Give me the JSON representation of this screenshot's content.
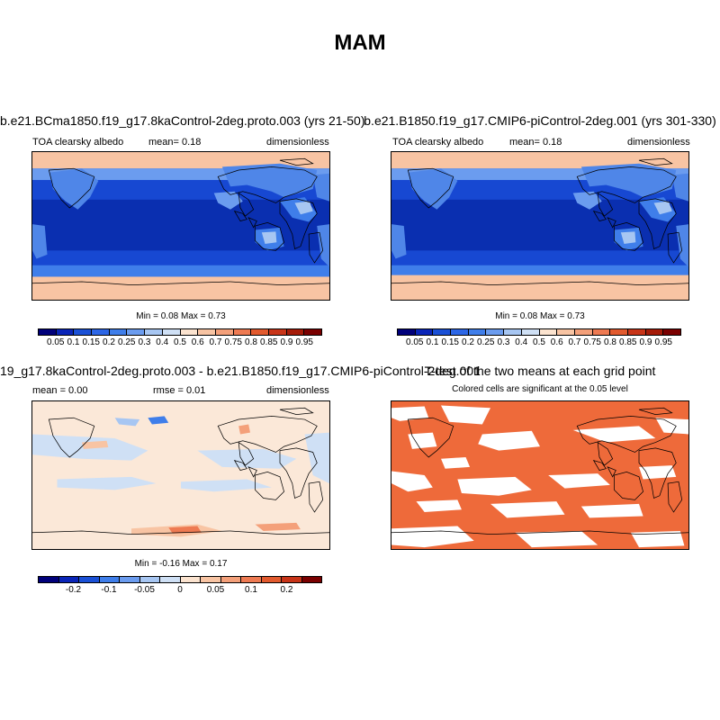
{
  "title": "MAM",
  "panels": {
    "p1": {
      "title": "b.e21.BCma1850.f19_g17.8kaControl-2deg.proto.003 (yrs 21-50)",
      "left_label": "TOA clearsky albedo",
      "center_label": "mean=  0.18",
      "right_label": "dimensionless",
      "minmax": "Min =  0.08 Max =  0.73"
    },
    "p2": {
      "title": "b.e21.B1850.f19_g17.CMIP6-piControl-2deg.001 (yrs 301-330)",
      "left_label": "TOA clearsky albedo",
      "center_label": "mean=  0.18",
      "right_label": "dimensionless",
      "minmax": "Min =  0.08 Max =  0.73"
    },
    "p3": {
      "title": "19_g17.8kaControl-2deg.proto.003 - b.e21.B1850.f19_g17.CMIP6-piControl-2deg.001",
      "left_label": "mean =  0.00",
      "center_label": "rmse =  0.01",
      "right_label": "dimensionless",
      "minmax": "Min =  -0.16 Max =  0.17"
    },
    "p4": {
      "title": "T-test of the two means at each grid point",
      "subtitle": "Colored cells are significant at the 0.05 level"
    }
  },
  "colorbar_abs": {
    "colors": [
      "#00007a",
      "#0a25b8",
      "#1a50d6",
      "#2c66e6",
      "#3f7eea",
      "#6b9cef",
      "#a7c6f2",
      "#cfe0f5",
      "#fbe3cf",
      "#f8c4a3",
      "#f4a07a",
      "#ee7a52",
      "#e25a2e",
      "#c83418",
      "#a51b08",
      "#7a0000"
    ],
    "ticks": [
      "0.05",
      "0.1",
      "0.15",
      "0.2",
      "0.25",
      "0.3",
      "0.4",
      "0.5",
      "0.6",
      "0.7",
      "0.75",
      "0.8",
      "0.85",
      "0.9",
      "0.95"
    ]
  },
  "colorbar_diff": {
    "colors": [
      "#00007a",
      "#0a25b8",
      "#1a50d6",
      "#3f7eea",
      "#6b9cef",
      "#a7c6f2",
      "#cfe0f5",
      "#fbe3cf",
      "#f8c4a3",
      "#f4a07a",
      "#ee7a52",
      "#e25a2e",
      "#c83418",
      "#7a0000"
    ],
    "ticks": [
      "-0.2",
      "-0.1",
      "-0.05",
      "0",
      "0.05",
      "0.1",
      "0.2"
    ]
  },
  "colors": {
    "ocean_deep": "#0a2fb0",
    "ocean_mid": "#1748d2",
    "land_mid": "#4f86e8",
    "land_light": "#a7c6f2",
    "ice": "#f8c4a3",
    "diff_bg": "#fbe8d8",
    "diff_neg": "#cfe0f5",
    "signif": "#ee6a3a"
  }
}
